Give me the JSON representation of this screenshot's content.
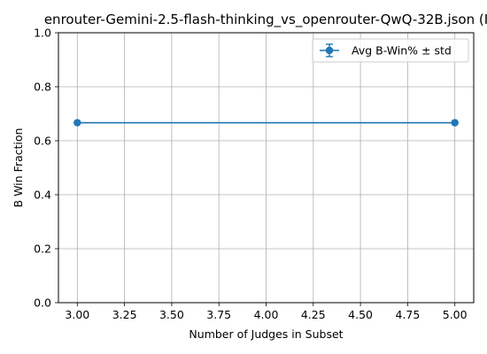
{
  "chart_data": {
    "type": "line",
    "title": "enrouter-Gemini-2.5-flash-thinking_vs_openrouter-QwQ-32B.json (I",
    "xlabel": "Number of Judges in Subset",
    "ylabel": "B Win Fraction",
    "xlim": [
      2.9,
      5.1
    ],
    "ylim": [
      0.0,
      1.0
    ],
    "x_ticks": [
      3.0,
      3.25,
      3.5,
      3.75,
      4.0,
      4.25,
      4.5,
      4.75,
      5.0
    ],
    "x_tick_labels": [
      "3.00",
      "3.25",
      "3.50",
      "3.75",
      "4.00",
      "4.25",
      "4.50",
      "4.75",
      "5.00"
    ],
    "y_ticks": [
      0.0,
      0.2,
      0.4,
      0.6,
      0.8,
      1.0
    ],
    "y_tick_labels": [
      "0.0",
      "0.2",
      "0.4",
      "0.6",
      "0.8",
      "1.0"
    ],
    "grid": true,
    "legend_position": "top-right",
    "series": [
      {
        "name": "Avg B-Win% ± std",
        "color": "#1f77b4",
        "marker": "circle",
        "x": [
          3,
          5
        ],
        "y": [
          0.6667,
          0.6667
        ],
        "std": [
          0,
          0
        ]
      }
    ]
  }
}
